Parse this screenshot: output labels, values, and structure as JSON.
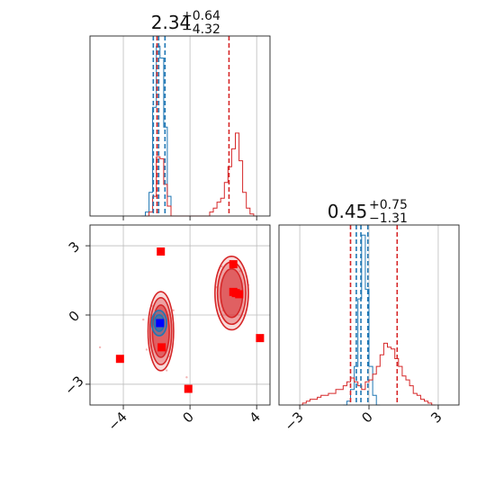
{
  "chart_data": [
    {
      "type": "histogram",
      "panel": "x-marginal",
      "title": {
        "value": "2.34",
        "plus": "+0.64",
        "minus": "−4.32"
      },
      "xlim": [
        -6,
        4.8
      ],
      "grid": true,
      "x_ticks": [
        -4,
        0,
        4
      ],
      "series": [
        {
          "color": "#1f77b4",
          "bin_width": 0.22,
          "bins": [
            [
              -2.9,
              0
            ],
            [
              -2.68,
              0.02
            ],
            [
              -2.46,
              0.12
            ],
            [
              -2.24,
              0.55
            ],
            [
              -2.02,
              0.86
            ],
            [
              -1.8,
              0.8
            ],
            [
              -1.58,
              0.45
            ],
            [
              -1.36,
              0.1
            ],
            [
              -1.14,
              0
            ]
          ],
          "quantiles": [
            -2.2,
            -1.88,
            -1.5
          ]
        },
        {
          "color": "#d62728",
          "bin_width": 0.22,
          "bins": [
            [
              -2.68,
              0
            ],
            [
              -2.46,
              0.02
            ],
            [
              -2.24,
              0.1
            ],
            [
              -2.02,
              0.3
            ],
            [
              -1.8,
              0.29
            ],
            [
              -1.58,
              0.16
            ],
            [
              -1.36,
              0.05
            ],
            [
              -1.14,
              0
            ],
            [
              0.96,
              0
            ],
            [
              1.18,
              0.02
            ],
            [
              1.4,
              0.04
            ],
            [
              1.62,
              0.07
            ],
            [
              1.84,
              0.09
            ],
            [
              2.06,
              0.17
            ],
            [
              2.28,
              0.25
            ],
            [
              2.5,
              0.34
            ],
            [
              2.72,
              0.42
            ],
            [
              2.94,
              0.28
            ],
            [
              3.16,
              0.12
            ],
            [
              3.38,
              0.04
            ],
            [
              3.6,
              0.01
            ],
            [
              3.82,
              0
            ]
          ],
          "quantiles": [
            -1.98,
            2.34
          ]
        }
      ]
    },
    {
      "type": "scatter",
      "panel": "joint",
      "xlim": [
        -6,
        4.8
      ],
      "ylim": [
        -3.9,
        3.9
      ],
      "grid": true,
      "x_ticks": [
        -4,
        0,
        4
      ],
      "y_ticks": [
        3,
        0,
        -3
      ],
      "contours": [
        {
          "color": "#d62728",
          "center": [
            -1.75,
            -0.7
          ],
          "radii": [
            0.65,
            1.45
          ]
        },
        {
          "color": "#d62728",
          "center": [
            2.5,
            0.95
          ],
          "radii": [
            0.85,
            1.35
          ]
        },
        {
          "color": "#1f77b4",
          "center": [
            -1.85,
            -0.35
          ],
          "radii": [
            0.45,
            0.55
          ]
        }
      ],
      "markers": [
        {
          "color": "#ff0000",
          "shape": "square",
          "x": -1.75,
          "y": 2.75
        },
        {
          "color": "#ff0000",
          "shape": "square",
          "x": 2.6,
          "y": 2.2
        },
        {
          "color": "#ff0000",
          "shape": "square",
          "x": 2.6,
          "y": 1.0
        },
        {
          "color": "#ff0000",
          "shape": "square",
          "x": 2.75,
          "y": 0.95
        },
        {
          "color": "#ff0000",
          "shape": "square",
          "x": 2.95,
          "y": 0.9
        },
        {
          "color": "#ff0000",
          "shape": "square",
          "x": 4.2,
          "y": -1.0
        },
        {
          "color": "#ff0000",
          "shape": "square",
          "x": -1.7,
          "y": -1.4
        },
        {
          "color": "#ff0000",
          "shape": "square",
          "x": -4.2,
          "y": -1.9
        },
        {
          "color": "#ff0000",
          "shape": "square",
          "x": -0.1,
          "y": -3.2
        },
        {
          "color": "#0000ff",
          "shape": "square",
          "x": -1.8,
          "y": -0.35
        }
      ]
    },
    {
      "type": "histogram",
      "panel": "y-marginal",
      "title": {
        "value": "0.45",
        "plus": "+0.75",
        "minus": "−1.31"
      },
      "xlim": [
        -3.9,
        3.9
      ],
      "grid": true,
      "x_ticks": [
        -3,
        0,
        3
      ],
      "series": [
        {
          "color": "#1f77b4",
          "bin_width": 0.16,
          "bins": [
            [
              -1.12,
              0
            ],
            [
              -0.96,
              0.02
            ],
            [
              -0.8,
              0.08
            ],
            [
              -0.64,
              0.2
            ],
            [
              -0.48,
              0.55
            ],
            [
              -0.32,
              0.88
            ],
            [
              -0.16,
              0.6
            ],
            [
              0,
              0.2
            ],
            [
              0.16,
              0.05
            ],
            [
              0.32,
              0
            ]
          ],
          "quantiles": [
            -0.55,
            -0.35,
            -0.05
          ]
        },
        {
          "color": "#d62728",
          "bin_width": 0.16,
          "bins": [
            [
              -3.04,
              0
            ],
            [
              -2.88,
              0.01
            ],
            [
              -2.72,
              0.02
            ],
            [
              -2.56,
              0.03
            ],
            [
              -2.4,
              0.03
            ],
            [
              -2.24,
              0.04
            ],
            [
              -2.08,
              0.05
            ],
            [
              -1.92,
              0.05
            ],
            [
              -1.76,
              0.06
            ],
            [
              -1.6,
              0.06
            ],
            [
              -1.44,
              0.08
            ],
            [
              -1.28,
              0.08
            ],
            [
              -1.12,
              0.1
            ],
            [
              -0.96,
              0.12
            ],
            [
              -0.8,
              0.14
            ],
            [
              -0.64,
              0.12
            ],
            [
              -0.48,
              0.1
            ],
            [
              -0.32,
              0.08
            ],
            [
              -0.16,
              0.12
            ],
            [
              0,
              0.13
            ],
            [
              0.16,
              0.16
            ],
            [
              0.32,
              0.2
            ],
            [
              0.48,
              0.26
            ],
            [
              0.64,
              0.32
            ],
            [
              0.8,
              0.3
            ],
            [
              0.96,
              0.29
            ],
            [
              1.12,
              0.24
            ],
            [
              1.28,
              0.2
            ],
            [
              1.44,
              0.15
            ],
            [
              1.6,
              0.13
            ],
            [
              1.76,
              0.1
            ],
            [
              1.92,
              0.06
            ],
            [
              2.08,
              0.05
            ],
            [
              2.24,
              0.03
            ],
            [
              2.4,
              0.02
            ],
            [
              2.56,
              0.01
            ],
            [
              2.72,
              0
            ]
          ],
          "quantiles": [
            -0.8,
            1.22
          ]
        }
      ]
    }
  ]
}
